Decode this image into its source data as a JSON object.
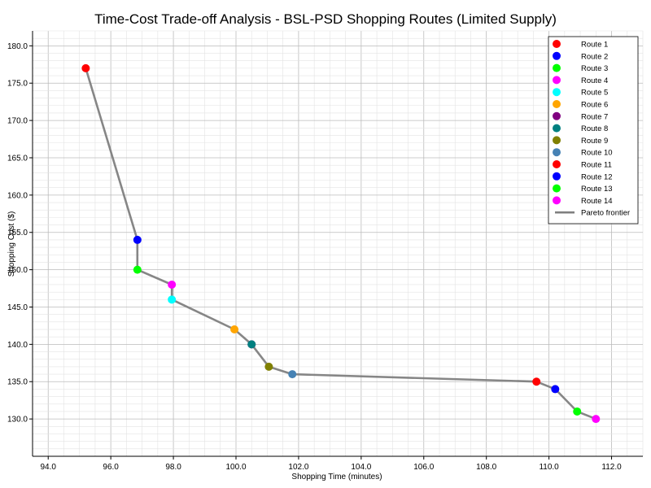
{
  "chart_data": {
    "type": "scatter",
    "title": "Time-Cost Trade-off Analysis - BSL-PSD Shopping Routes (Limited Supply)",
    "xlabel": "Shopping Time (minutes)",
    "ylabel": "Shopping Cost ($)",
    "xlim": [
      93.5,
      113.0
    ],
    "ylim": [
      125.0,
      182.0
    ],
    "xticks": [
      "94.0",
      "96.0",
      "98.0",
      "100.0",
      "102.0",
      "104.0",
      "106.0",
      "108.0",
      "110.0",
      "112.0"
    ],
    "yticks": [
      "130.0",
      "135.0",
      "140.0",
      "145.0",
      "150.0",
      "155.0",
      "160.0",
      "165.0",
      "170.0",
      "175.0",
      "180.0"
    ],
    "grid": true,
    "legend_position": "top-right",
    "series": [
      {
        "name": "Route 1",
        "color": "#ff0000",
        "x": 95.2,
        "y": 177
      },
      {
        "name": "Route 2",
        "color": "#0000ff",
        "x": 96.85,
        "y": 154
      },
      {
        "name": "Route 3",
        "color": "#00ff00",
        "x": 96.85,
        "y": 150
      },
      {
        "name": "Route 4",
        "color": "#ff00ff",
        "x": 97.95,
        "y": 148
      },
      {
        "name": "Route 5",
        "color": "#00ffff",
        "x": 97.95,
        "y": 146
      },
      {
        "name": "Route 6",
        "color": "#ffa500",
        "x": 99.95,
        "y": 142
      },
      {
        "name": "Route 7",
        "color": "#800080",
        "x": 100.5,
        "y": 140
      },
      {
        "name": "Route 8",
        "color": "#008080",
        "x": 100.5,
        "y": 140
      },
      {
        "name": "Route 9",
        "color": "#808000",
        "x": 101.05,
        "y": 137
      },
      {
        "name": "Route 10",
        "color": "#4682b4",
        "x": 101.8,
        "y": 136
      },
      {
        "name": "Route 11",
        "color": "#ff0000",
        "x": 109.6,
        "y": 135
      },
      {
        "name": "Route 12",
        "color": "#0000ff",
        "x": 110.2,
        "y": 134
      },
      {
        "name": "Route 13",
        "color": "#00ff00",
        "x": 110.9,
        "y": 131
      },
      {
        "name": "Route 14",
        "color": "#ff00ff",
        "x": 111.5,
        "y": 130
      }
    ],
    "frontier": {
      "name": "Pareto frontier",
      "color": "#808080",
      "points": [
        [
          95.2,
          177
        ],
        [
          96.85,
          154
        ],
        [
          96.85,
          150
        ],
        [
          97.95,
          148
        ],
        [
          97.95,
          146
        ],
        [
          99.95,
          142
        ],
        [
          100.5,
          140
        ],
        [
          101.05,
          137
        ],
        [
          101.8,
          136
        ],
        [
          109.6,
          135
        ],
        [
          110.2,
          134
        ],
        [
          110.9,
          131
        ],
        [
          111.5,
          130
        ]
      ]
    }
  }
}
